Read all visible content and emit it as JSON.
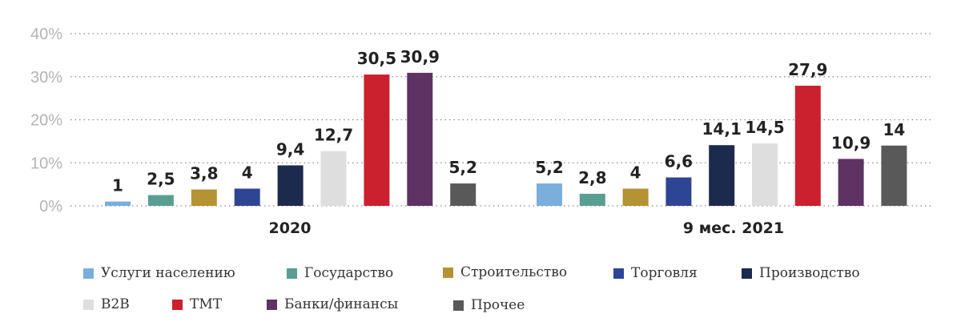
{
  "chart_data": {
    "type": "bar",
    "y_ticks": [
      "40%",
      "30%",
      "20%",
      "10%",
      "0%"
    ],
    "ylim": [
      0,
      40
    ],
    "grid": true,
    "groups": [
      "2020",
      "9 мес. 2021"
    ],
    "series": [
      {
        "name": "Услуги населению",
        "color": "#7aaedb",
        "values": [
          1,
          5.2
        ],
        "labels": [
          "1",
          "5,2"
        ]
      },
      {
        "name": "Государство",
        "color": "#5a9e92",
        "values": [
          2.5,
          2.8
        ],
        "labels": [
          "2,5",
          "2,8"
        ]
      },
      {
        "name": "Строительство",
        "color": "#b59234",
        "values": [
          3.8,
          4
        ],
        "labels": [
          "3,8",
          "4"
        ]
      },
      {
        "name": "Торговля",
        "color": "#2e4596",
        "values": [
          4,
          6.6
        ],
        "labels": [
          "4",
          "6,6"
        ]
      },
      {
        "name": "Производство",
        "color": "#1c2a4d",
        "values": [
          9.4,
          14.1
        ],
        "labels": [
          "9,4",
          "14,1"
        ]
      },
      {
        "name": "B2B",
        "color": "#dedede",
        "values": [
          12.7,
          14.5
        ],
        "labels": [
          "12,7",
          "14,5"
        ]
      },
      {
        "name": "TMT",
        "color": "#cb202d",
        "values": [
          30.5,
          27.9
        ],
        "labels": [
          "30,5",
          "27,9"
        ]
      },
      {
        "name": "Банки/финансы",
        "color": "#5e3263",
        "values": [
          30.9,
          10.9
        ],
        "labels": [
          "30,9",
          "10,9"
        ]
      },
      {
        "name": "Прочее",
        "color": "#595959",
        "values": [
          5.2,
          14
        ],
        "labels": [
          "5,2",
          "14"
        ]
      }
    ],
    "legend_position": "bottom"
  }
}
